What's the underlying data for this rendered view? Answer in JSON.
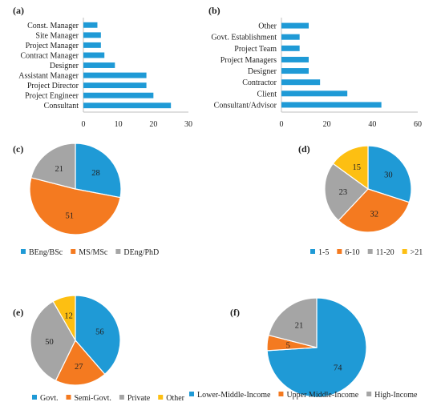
{
  "colors": {
    "blue": "#1f9ad6",
    "orange": "#f47a20",
    "gray": "#a5a5a5",
    "yellow": "#fdbf12",
    "axis": "#bfbfbf",
    "text": "#222222",
    "slice_border": "#ffffff"
  },
  "chart_data": [
    {
      "id": "a",
      "panel_label": "(a)",
      "type": "bar",
      "orientation": "horizontal",
      "categories": [
        "Const. Manager",
        "Site Manager",
        "Project Manager",
        "Contract Manager",
        "Designer",
        "Assistant Manager",
        "Project Director",
        "Project Engineer",
        "Consultant"
      ],
      "values": [
        4,
        5,
        5,
        6,
        9,
        18,
        18,
        20,
        25
      ],
      "xlim": [
        0,
        30
      ],
      "xticks": [
        0,
        10,
        20,
        30
      ],
      "grid": false
    },
    {
      "id": "b",
      "panel_label": "(b)",
      "type": "bar",
      "orientation": "horizontal",
      "categories": [
        "Other",
        "Govt. Establishment",
        "Project Team",
        "Project Managers",
        "Designer",
        "Contractor",
        "Client",
        "Consultant/Advisor"
      ],
      "values": [
        12,
        8,
        8,
        12,
        12,
        17,
        29,
        44
      ],
      "xlim": [
        0,
        60
      ],
      "xticks": [
        0,
        20,
        40,
        60
      ],
      "grid": false
    },
    {
      "id": "c",
      "panel_label": "(c)",
      "type": "pie",
      "labels": [
        "BEng/BSc",
        "MS/MSc",
        "DEng/PhD"
      ],
      "values": [
        28,
        51,
        21
      ],
      "legend": "bottom"
    },
    {
      "id": "d",
      "panel_label": "(d)",
      "type": "pie",
      "labels": [
        "1-5",
        "6-10",
        "11-20",
        ">21"
      ],
      "values": [
        30,
        32,
        23,
        15
      ],
      "legend": "bottom"
    },
    {
      "id": "e",
      "panel_label": "(e)",
      "type": "pie",
      "labels": [
        "Govt.",
        "Semi-Govt.",
        "Private",
        "Other"
      ],
      "values": [
        56,
        27,
        50,
        12
      ],
      "legend": "bottom"
    },
    {
      "id": "f",
      "panel_label": "(f)",
      "type": "pie",
      "labels": [
        "Lower-Middle-Income",
        "Upper Middle-Income",
        "High-Income"
      ],
      "values": [
        74,
        5,
        21
      ],
      "legend": "bottom"
    }
  ]
}
